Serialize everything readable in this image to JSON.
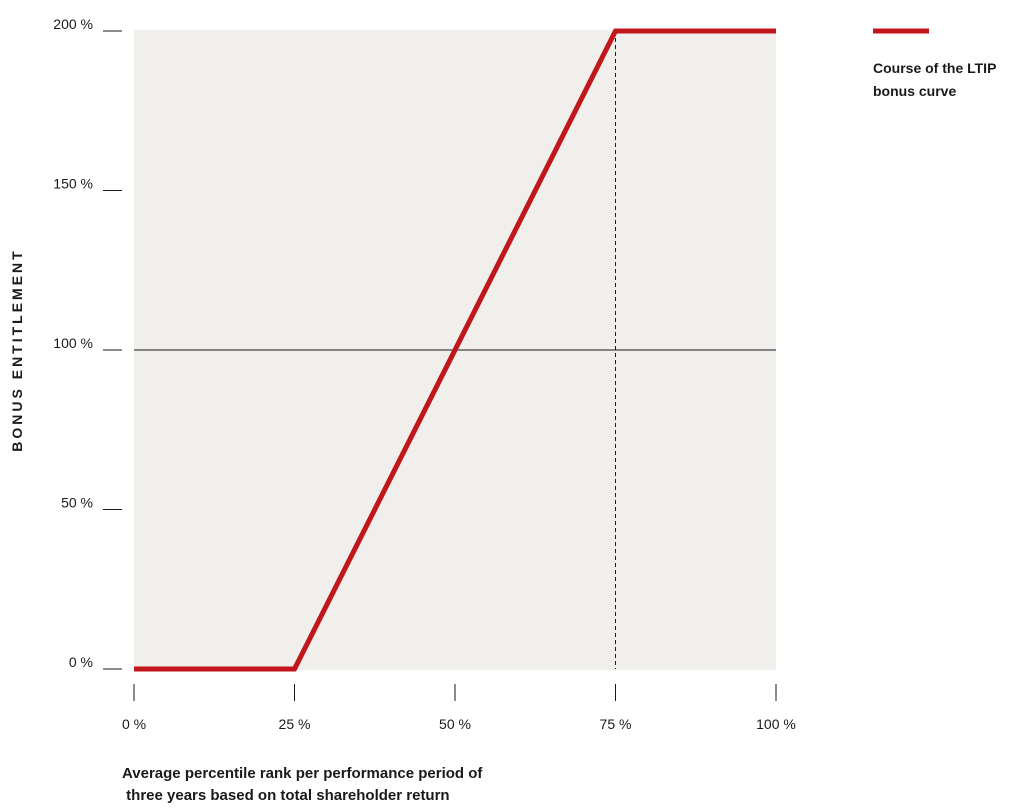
{
  "chart_data": {
    "type": "line",
    "ylabel": "BONUS ENTITLEMENT",
    "xlabel_lines": [
      "Average percentile rank per performance period of",
      " three years based on total shareholder return"
    ],
    "x_ticks": [
      "0 %",
      "25 %",
      "50 %",
      "75 %",
      "100 %"
    ],
    "y_ticks": [
      "0 %",
      "50 %",
      "100 %",
      "150 %",
      "200 %"
    ],
    "x_tick_values": [
      0,
      25,
      50,
      75,
      100
    ],
    "y_tick_values": [
      0,
      50,
      100,
      150,
      200
    ],
    "xlim": [
      0,
      100
    ],
    "ylim": [
      0,
      200
    ],
    "series": [
      {
        "name": "Course of the LTIP bonus curve",
        "color": "#c0161c",
        "x": [
          0,
          25,
          50,
          75,
          100
        ],
        "y": [
          0,
          0,
          100,
          200,
          200
        ]
      }
    ],
    "reference_lines": {
      "horizontal_at_y": 100,
      "vertical_dashed_at_x": 75
    },
    "legend": {
      "position": "top-right",
      "lines": [
        "Course of the LTIP",
        "bonus curve"
      ]
    },
    "plot_background": "#f0efec",
    "grid": false
  }
}
